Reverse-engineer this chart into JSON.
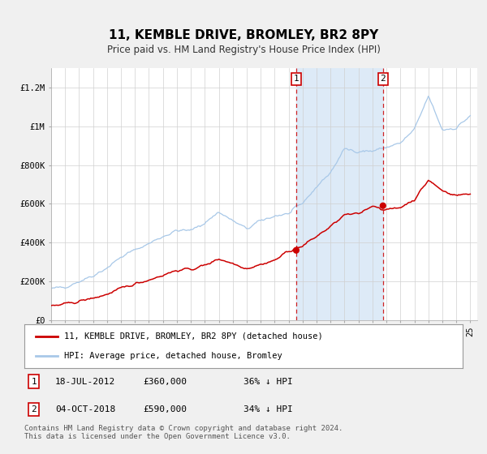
{
  "title": "11, KEMBLE DRIVE, BROMLEY, BR2 8PY",
  "subtitle": "Price paid vs. HM Land Registry's House Price Index (HPI)",
  "ylim": [
    0,
    1300000
  ],
  "yticks": [
    0,
    200000,
    400000,
    600000,
    800000,
    1000000,
    1200000
  ],
  "ytick_labels": [
    "£0",
    "£200K",
    "£400K",
    "£600K",
    "£800K",
    "£1M",
    "£1.2M"
  ],
  "hpi_color": "#a8c8e8",
  "price_color": "#cc0000",
  "shade_color": "#ddeaf7",
  "plot_bg": "#ffffff",
  "fig_bg": "#f0f0f0",
  "sale1_price": 360000,
  "sale1_label": "1",
  "sale1_year": 2012.54,
  "sale2_price": 590000,
  "sale2_label": "2",
  "sale2_year": 2018.75,
  "legend1": "11, KEMBLE DRIVE, BROMLEY, BR2 8PY (detached house)",
  "legend2": "HPI: Average price, detached house, Bromley",
  "note1_label": "1",
  "note1_date": "18-JUL-2012",
  "note1_price": "£360,000",
  "note1_pct": "36% ↓ HPI",
  "note2_label": "2",
  "note2_date": "04-OCT-2018",
  "note2_price": "£590,000",
  "note2_pct": "34% ↓ HPI",
  "footer": "Contains HM Land Registry data © Crown copyright and database right 2024.\nThis data is licensed under the Open Government Licence v3.0.",
  "hpi_key_years": [
    1995,
    1996,
    1997,
    1998,
    1999,
    2000,
    2001,
    2002,
    2003,
    2004,
    2005,
    2006,
    2007,
    2008,
    2009,
    2010,
    2011,
    2012,
    2013,
    2014,
    2015,
    2016,
    2017,
    2018,
    2019,
    2020,
    2021,
    2022,
    2023,
    2024,
    2025
  ],
  "hpi_key_vals": [
    160000,
    172000,
    200000,
    230000,
    270000,
    325000,
    362000,
    395000,
    432000,
    462000,
    462000,
    502000,
    558000,
    512000,
    470000,
    512000,
    538000,
    548000,
    603000,
    688000,
    762000,
    882000,
    872000,
    872000,
    892000,
    912000,
    982000,
    1155000,
    982000,
    992000,
    1055000
  ],
  "price_key_years": [
    1995,
    1996,
    1997,
    1998,
    1999,
    2000,
    2001,
    2002,
    2003,
    2004,
    2005,
    2006,
    2007,
    2008,
    2009,
    2010,
    2011,
    2012,
    2013,
    2014,
    2015,
    2016,
    2017,
    2018,
    2019,
    2020,
    2021,
    2022,
    2023,
    2024,
    2025
  ],
  "price_key_vals": [
    72000,
    82000,
    97000,
    113000,
    133000,
    162000,
    187000,
    208000,
    232000,
    257000,
    262000,
    282000,
    317000,
    292000,
    267000,
    287000,
    308000,
    357000,
    382000,
    432000,
    482000,
    542000,
    547000,
    592000,
    567000,
    582000,
    622000,
    722000,
    668000,
    643000,
    652000
  ]
}
